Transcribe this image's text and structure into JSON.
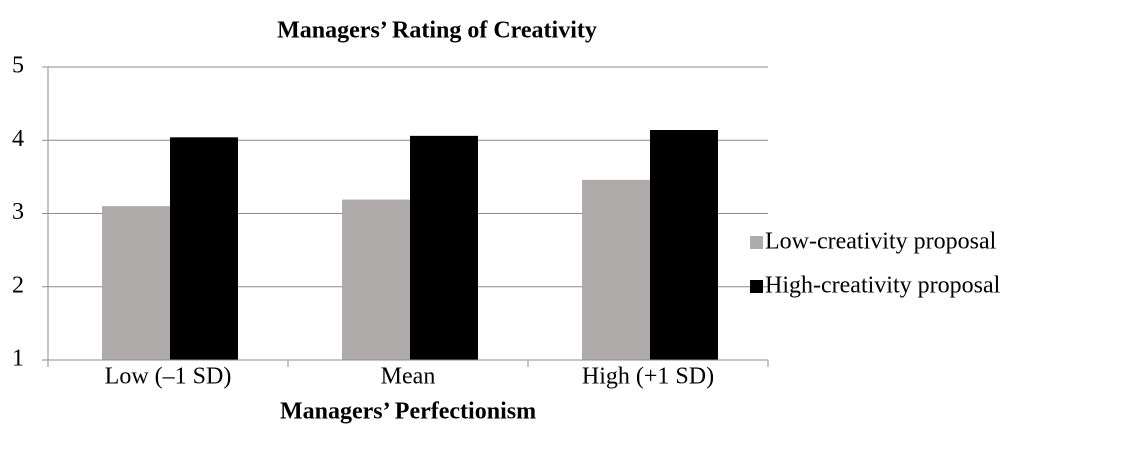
{
  "chart_data": {
    "type": "bar",
    "title": "Managers’ Rating of Creativity",
    "x_label": "Managers’ Perfectionism",
    "categories": [
      "Low (–1 SD)",
      "Mean",
      "High (+1 SD)"
    ],
    "series": [
      {
        "name": "Low-creativity proposal",
        "color": "#afabab",
        "values": [
          3.1,
          3.19,
          3.46
        ]
      },
      {
        "name": "High-creativity proposal",
        "color": "#000000",
        "values": [
          4.04,
          4.06,
          4.14
        ]
      }
    ],
    "ylim": [
      1,
      5
    ],
    "yticks": [
      1,
      2,
      3,
      4,
      5
    ],
    "grid": true,
    "legend": "right"
  }
}
